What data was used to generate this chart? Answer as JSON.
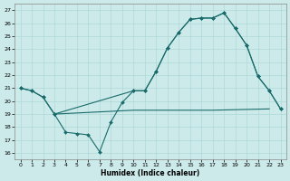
{
  "xlabel": "Humidex (Indice chaleur)",
  "bg_color": "#cceaea",
  "line_color": "#1a6b6b",
  "grid_color": "#b0d8d8",
  "ylim": [
    15.5,
    27.5
  ],
  "xlim": [
    -0.5,
    23.5
  ],
  "yticks": [
    16,
    17,
    18,
    19,
    20,
    21,
    22,
    23,
    24,
    25,
    26,
    27
  ],
  "xticks": [
    0,
    1,
    2,
    3,
    4,
    5,
    6,
    7,
    8,
    9,
    10,
    11,
    12,
    13,
    14,
    15,
    16,
    17,
    18,
    19,
    20,
    21,
    22,
    23
  ],
  "series1_x": [
    0,
    1,
    2,
    3,
    4,
    5,
    6,
    7,
    8,
    9,
    10,
    11,
    12,
    13,
    14,
    15,
    16,
    17,
    18,
    19,
    20,
    21,
    22,
    23
  ],
  "series1_y": [
    21.0,
    20.8,
    20.3,
    19.0,
    17.6,
    17.5,
    17.4,
    16.1,
    18.4,
    19.9,
    20.8,
    20.8,
    22.3,
    24.1,
    25.3,
    26.3,
    26.4,
    26.4,
    26.8,
    25.6,
    24.3,
    21.9,
    20.8,
    19.4
  ],
  "series2_x": [
    0,
    1,
    2,
    3,
    10,
    11,
    12,
    13,
    14,
    15,
    16,
    17,
    18,
    19,
    20,
    21,
    22,
    23
  ],
  "series2_y": [
    21.0,
    20.8,
    20.3,
    19.0,
    20.8,
    20.8,
    22.3,
    24.1,
    25.3,
    26.3,
    26.4,
    26.4,
    26.8,
    25.6,
    24.3,
    21.9,
    20.8,
    19.4
  ],
  "series3_x": [
    3,
    10,
    17,
    22
  ],
  "series3_y": [
    19.0,
    19.3,
    19.3,
    19.4
  ],
  "markersize": 2.0,
  "linewidth": 0.8
}
